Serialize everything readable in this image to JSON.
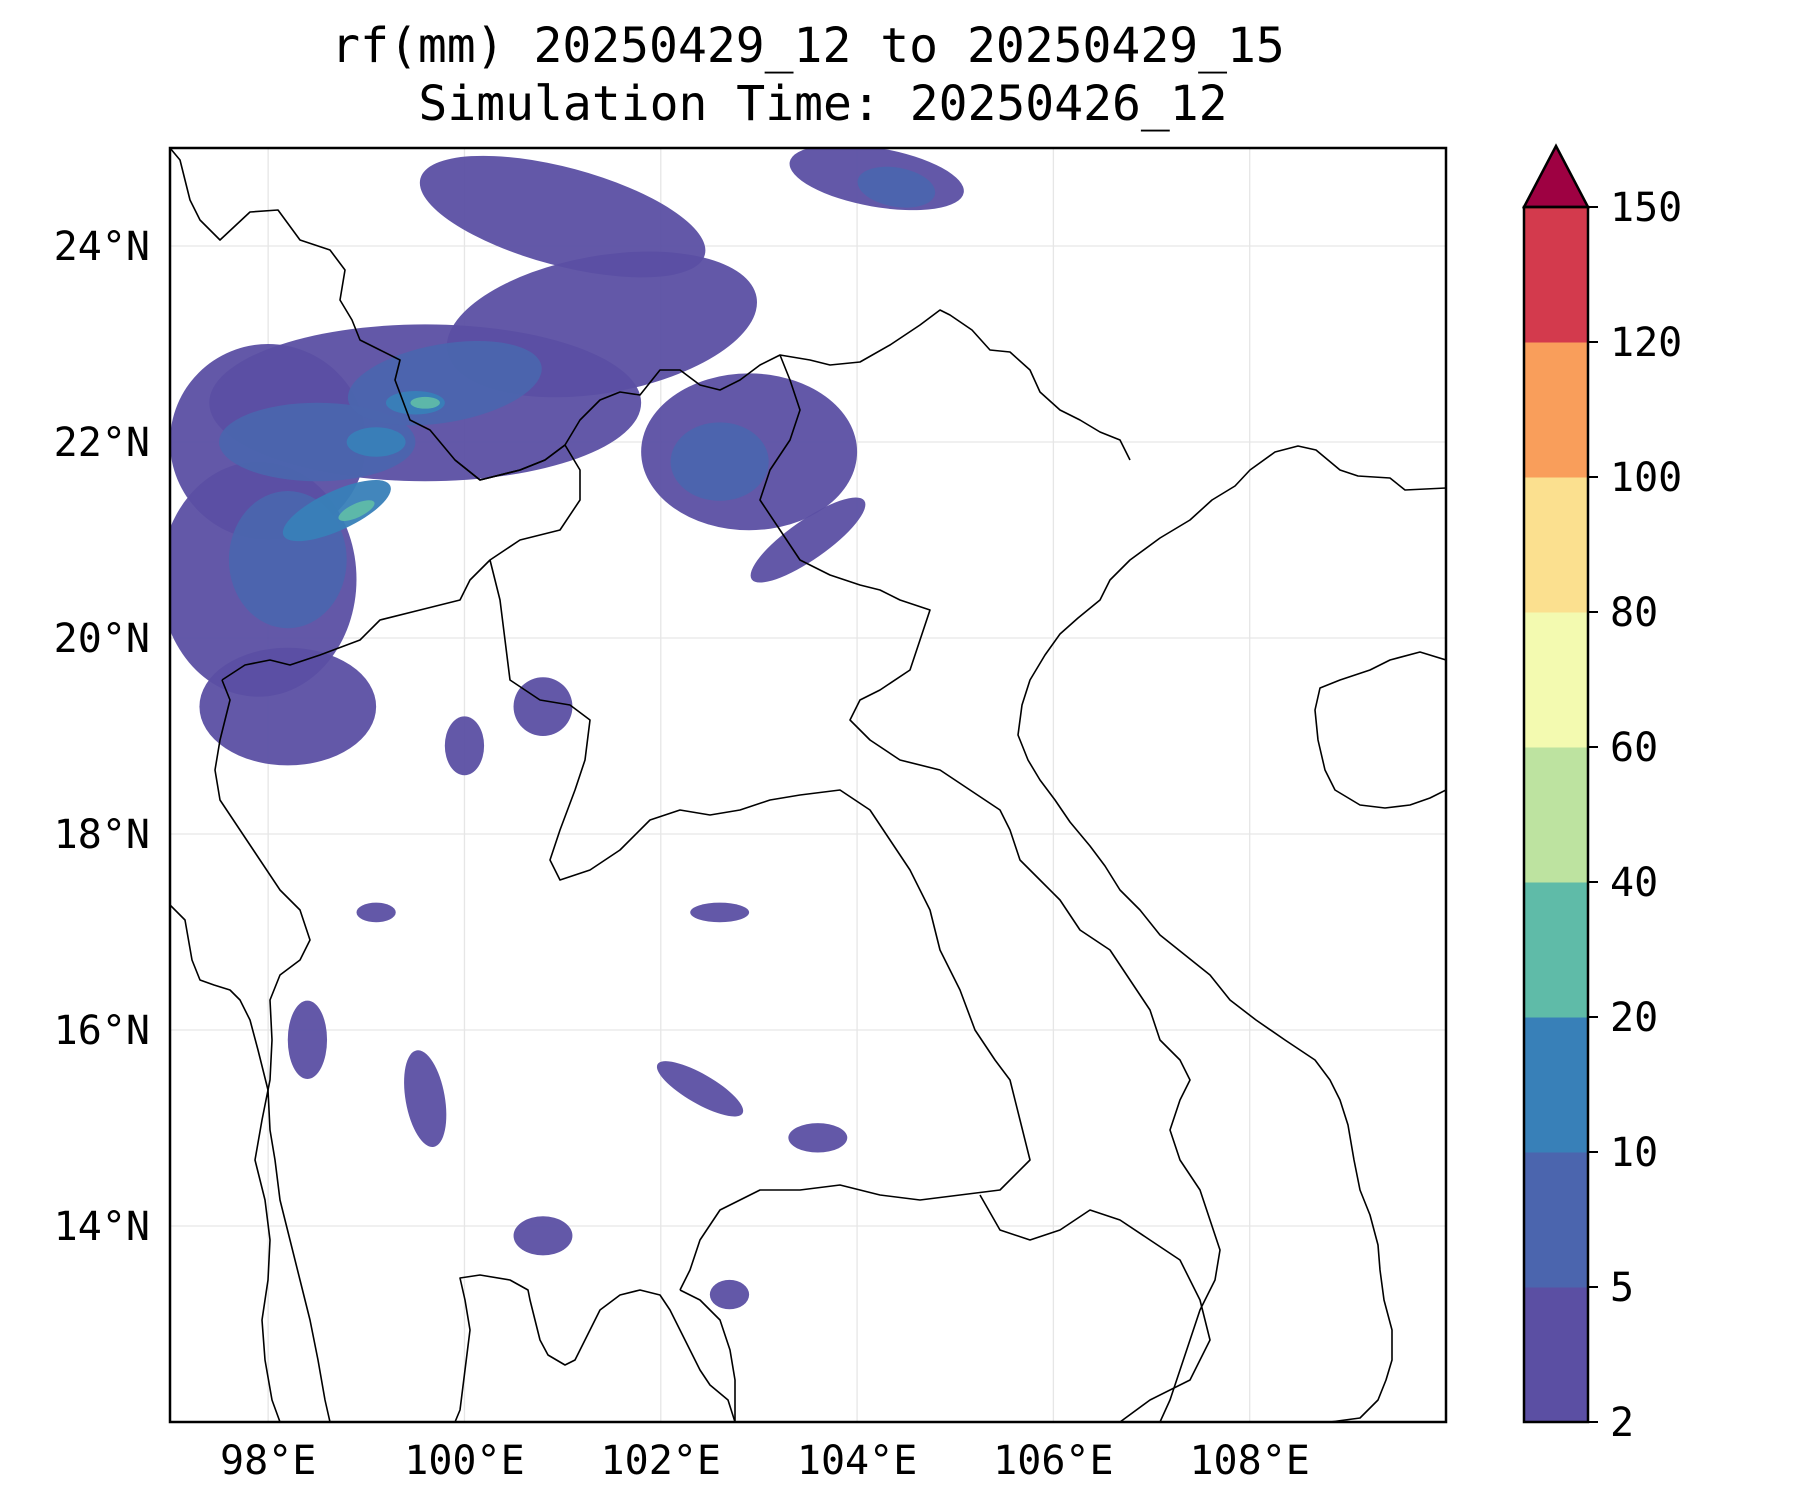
{
  "title": {
    "line1": "rf(mm) 20250429_12 to 20250429_15",
    "line2": "Simulation Time: 20250426_12"
  },
  "map": {
    "projection": "PlateCarree",
    "lon_range": [
      97,
      110
    ],
    "lat_range": [
      12,
      25
    ],
    "gridlines": true,
    "lon_ticks": [
      {
        "value": 98,
        "label": "98°E"
      },
      {
        "value": 100,
        "label": "100°E"
      },
      {
        "value": 102,
        "label": "102°E"
      },
      {
        "value": 104,
        "label": "104°E"
      },
      {
        "value": 106,
        "label": "106°E"
      },
      {
        "value": 108,
        "label": "108°E"
      }
    ],
    "lat_ticks": [
      {
        "value": 14,
        "label": "14°N"
      },
      {
        "value": 16,
        "label": "16°N"
      },
      {
        "value": 18,
        "label": "18°N"
      },
      {
        "value": 20,
        "label": "20°N"
      },
      {
        "value": 22,
        "label": "22°N"
      },
      {
        "value": 24,
        "label": "24°N"
      }
    ],
    "rain_areas": [
      {
        "level": 0,
        "lon": 98.0,
        "lat": 22.0,
        "rx": 1.0,
        "ry": 1.0,
        "rot": 0
      },
      {
        "level": 0,
        "lon": 99.6,
        "lat": 22.4,
        "rx": 2.2,
        "ry": 0.8,
        "rot": 0
      },
      {
        "level": 0,
        "lon": 101.4,
        "lat": 23.2,
        "rx": 1.6,
        "ry": 0.7,
        "rot": -10
      },
      {
        "level": 0,
        "lon": 101.0,
        "lat": 24.3,
        "rx": 1.5,
        "ry": 0.5,
        "rot": 15
      },
      {
        "level": 0,
        "lon": 102.9,
        "lat": 21.9,
        "rx": 1.1,
        "ry": 0.8,
        "rot": 0
      },
      {
        "level": 0,
        "lon": 97.9,
        "lat": 20.6,
        "rx": 1.0,
        "ry": 1.2,
        "rot": 0
      },
      {
        "level": 0,
        "lon": 98.2,
        "lat": 19.3,
        "rx": 0.9,
        "ry": 0.6,
        "rot": 0
      },
      {
        "level": 0,
        "lon": 104.2,
        "lat": 24.7,
        "rx": 0.9,
        "ry": 0.3,
        "rot": 10
      },
      {
        "level": 0,
        "lon": 103.5,
        "lat": 21.0,
        "rx": 0.7,
        "ry": 0.2,
        "rot": -35
      },
      {
        "level": 0,
        "lon": 100.8,
        "lat": 19.3,
        "rx": 0.3,
        "ry": 0.3,
        "rot": 0
      },
      {
        "level": 0,
        "lon": 100.0,
        "lat": 18.9,
        "rx": 0.2,
        "ry": 0.3,
        "rot": 0
      },
      {
        "level": 0,
        "lon": 98.4,
        "lat": 15.9,
        "rx": 0.2,
        "ry": 0.4,
        "rot": 0
      },
      {
        "level": 0,
        "lon": 99.6,
        "lat": 15.3,
        "rx": 0.2,
        "ry": 0.5,
        "rot": -10
      },
      {
        "level": 0,
        "lon": 102.4,
        "lat": 15.4,
        "rx": 0.5,
        "ry": 0.15,
        "rot": 30
      },
      {
        "level": 0,
        "lon": 103.6,
        "lat": 14.9,
        "rx": 0.3,
        "ry": 0.15,
        "rot": 0
      },
      {
        "level": 0,
        "lon": 100.8,
        "lat": 13.9,
        "rx": 0.3,
        "ry": 0.2,
        "rot": 0
      },
      {
        "level": 0,
        "lon": 102.7,
        "lat": 13.3,
        "rx": 0.2,
        "ry": 0.15,
        "rot": 0
      },
      {
        "level": 0,
        "lon": 102.6,
        "lat": 17.2,
        "rx": 0.3,
        "ry": 0.1,
        "rot": 0
      },
      {
        "level": 0,
        "lon": 99.1,
        "lat": 17.2,
        "rx": 0.2,
        "ry": 0.1,
        "rot": 0
      },
      {
        "level": 1,
        "lon": 98.5,
        "lat": 22.0,
        "rx": 1.0,
        "ry": 0.4,
        "rot": 0
      },
      {
        "level": 1,
        "lon": 99.8,
        "lat": 22.6,
        "rx": 1.0,
        "ry": 0.4,
        "rot": -10
      },
      {
        "level": 1,
        "lon": 102.6,
        "lat": 21.8,
        "rx": 0.5,
        "ry": 0.4,
        "rot": 0
      },
      {
        "level": 1,
        "lon": 98.2,
        "lat": 20.8,
        "rx": 0.6,
        "ry": 0.7,
        "rot": 0
      },
      {
        "level": 1,
        "lon": 104.4,
        "lat": 24.6,
        "rx": 0.4,
        "ry": 0.2,
        "rot": 10
      },
      {
        "level": 2,
        "lon": 98.7,
        "lat": 21.3,
        "rx": 0.6,
        "ry": 0.2,
        "rot": -25
      },
      {
        "level": 2,
        "lon": 99.1,
        "lat": 22.0,
        "rx": 0.3,
        "ry": 0.15,
        "rot": 0
      },
      {
        "level": 2,
        "lon": 99.5,
        "lat": 22.4,
        "rx": 0.3,
        "ry": 0.12,
        "rot": 0
      },
      {
        "level": 3,
        "lon": 98.9,
        "lat": 21.3,
        "rx": 0.2,
        "ry": 0.07,
        "rot": -25
      },
      {
        "level": 3,
        "lon": 99.6,
        "lat": 22.4,
        "rx": 0.15,
        "ry": 0.06,
        "rot": 0
      }
    ]
  },
  "colorbar": {
    "levels": [
      2,
      5,
      10,
      20,
      40,
      60,
      80,
      100,
      120,
      150
    ],
    "labels": [
      "2",
      "5",
      "10",
      "20",
      "40",
      "60",
      "80",
      "100",
      "120",
      "150"
    ],
    "colors": [
      "#5b4fa3",
      "#4b65ae",
      "#3880b8",
      "#5fbba8",
      "#bde3a0",
      "#f3fab0",
      "#fbe08f",
      "#f99e5b",
      "#d33a4d"
    ],
    "extend_color": "#9e0142",
    "extend": "max"
  },
  "colors": {
    "gridline": "#e6e6e6",
    "coastline": "#000000",
    "ocean": "#ffffff"
  }
}
